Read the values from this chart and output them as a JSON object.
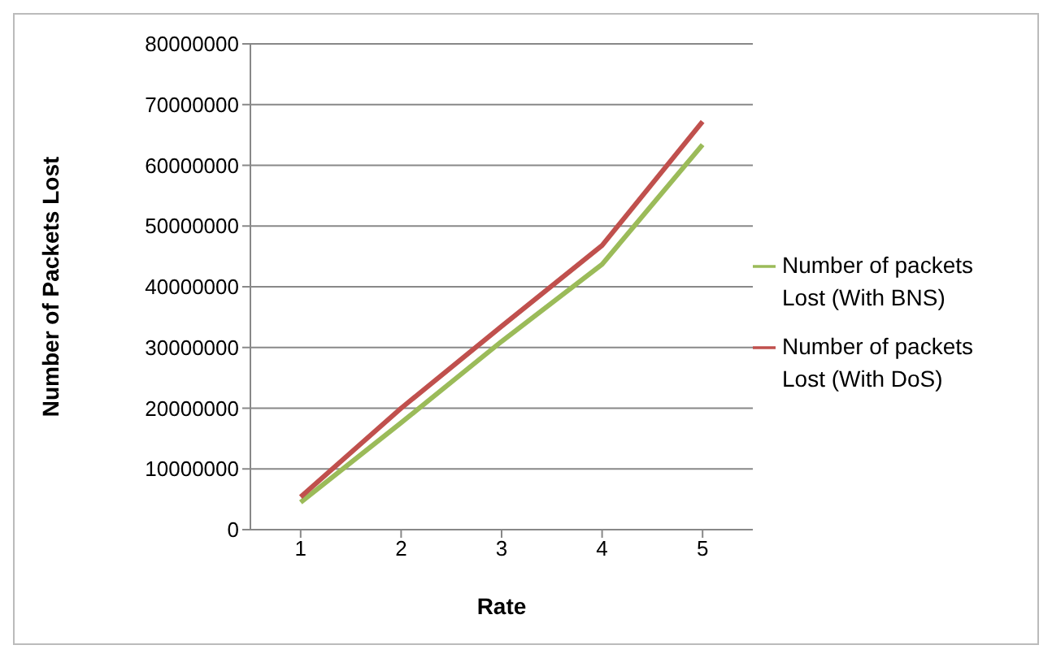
{
  "chart_data": {
    "type": "line",
    "xlabel": "Rate",
    "ylabel": "Number of Packets Lost",
    "categories": [
      "1",
      "2",
      "3",
      "4",
      "5"
    ],
    "series": [
      {
        "name": "Number of packets Lost (With BNS)",
        "color": "#9bbb59",
        "values": [
          4500000,
          17600000,
          31000000,
          43700000,
          63400000
        ]
      },
      {
        "name": "Number of packets Lost  (With DoS)",
        "color": "#c0504d",
        "values": [
          5400000,
          20000000,
          33500000,
          46800000,
          67200000
        ]
      }
    ],
    "ylim": [
      0,
      80000000
    ],
    "yticks": [
      0,
      10000000,
      20000000,
      30000000,
      40000000,
      50000000,
      60000000,
      70000000,
      80000000
    ],
    "grid": "y",
    "legend": "right",
    "marker": "none",
    "line_style": "solid"
  }
}
